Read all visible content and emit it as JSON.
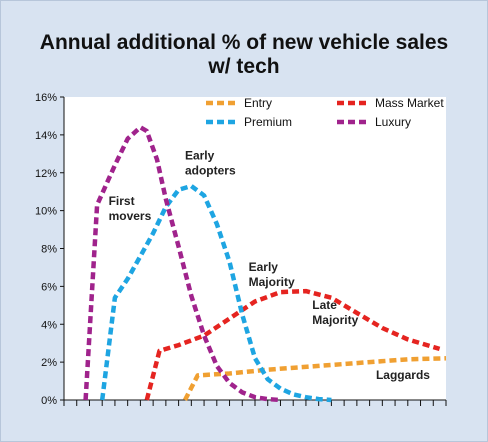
{
  "chart_data": {
    "type": "line",
    "title_line1": "Annual additional % of new vehicle sales",
    "title_line2": "w/ tech",
    "xlabel": "",
    "ylabel": "",
    "ylim": [
      0,
      16
    ],
    "y_ticks": [
      "0%",
      "2%",
      "4%",
      "6%",
      "8%",
      "10%",
      "12%",
      "14%",
      "16%"
    ],
    "x_range": [
      0,
      30
    ],
    "grid": false,
    "legend_position": "top-right",
    "series": [
      {
        "name": "Entry",
        "color": "#f0a032",
        "points": [
          [
            9.5,
            0
          ],
          [
            10.5,
            1.3
          ],
          [
            13,
            1.4
          ],
          [
            16,
            1.6
          ],
          [
            20,
            1.8
          ],
          [
            24,
            2.0
          ],
          [
            27,
            2.15
          ],
          [
            30,
            2.2
          ]
        ]
      },
      {
        "name": "Mass Market",
        "color": "#e52420",
        "points": [
          [
            6.5,
            0
          ],
          [
            7.5,
            2.6
          ],
          [
            9,
            2.9
          ],
          [
            11,
            3.4
          ],
          [
            13,
            4.3
          ],
          [
            15,
            5.2
          ],
          [
            17,
            5.7
          ],
          [
            19,
            5.75
          ],
          [
            21,
            5.4
          ],
          [
            23,
            4.6
          ],
          [
            25,
            3.8
          ],
          [
            27,
            3.2
          ],
          [
            29.5,
            2.7
          ]
        ]
      },
      {
        "name": "Premium",
        "color": "#1ea5e2",
        "points": [
          [
            3,
            0
          ],
          [
            4,
            5.4
          ],
          [
            5,
            6.4
          ],
          [
            6,
            7.6
          ],
          [
            7,
            8.8
          ],
          [
            8,
            10.2
          ],
          [
            9,
            11.1
          ],
          [
            10,
            11.3
          ],
          [
            11,
            10.8
          ],
          [
            12,
            9.3
          ],
          [
            13,
            7.3
          ],
          [
            14,
            4.5
          ],
          [
            15,
            2.2
          ],
          [
            16,
            1.1
          ],
          [
            17,
            0.6
          ],
          [
            18,
            0.3
          ],
          [
            19,
            0.15
          ],
          [
            20,
            0.05
          ],
          [
            21,
            0
          ]
        ]
      },
      {
        "name": "Luxury",
        "color": "#a0238c",
        "points": [
          [
            1.7,
            0
          ],
          [
            2.6,
            10.3
          ],
          [
            3.2,
            11.2
          ],
          [
            4,
            12.4
          ],
          [
            5,
            13.8
          ],
          [
            6,
            14.4
          ],
          [
            6.5,
            14.2
          ],
          [
            7.3,
            12.7
          ],
          [
            8,
            10.6
          ],
          [
            9,
            8.1
          ],
          [
            10,
            5.5
          ],
          [
            11,
            3.4
          ],
          [
            12,
            1.8
          ],
          [
            13,
            0.9
          ],
          [
            14,
            0.4
          ],
          [
            15,
            0.15
          ],
          [
            16,
            0.05
          ],
          [
            17,
            0
          ]
        ]
      }
    ],
    "annotations": [
      {
        "lines": [
          "First",
          "movers"
        ],
        "x": 3.5,
        "y": 10.3
      },
      {
        "lines": [
          "Early",
          "adopters"
        ],
        "x": 9.5,
        "y": 12.7
      },
      {
        "lines": [
          "Early",
          "Majority"
        ],
        "x": 14.5,
        "y": 6.8
      },
      {
        "lines": [
          "Late",
          "Majority"
        ],
        "x": 19.5,
        "y": 4.8
      },
      {
        "lines": [
          "Laggards"
        ],
        "x": 24.5,
        "y": 1.1
      }
    ],
    "legend_order": [
      "Entry",
      "Mass Market",
      "Premium",
      "Luxury"
    ]
  }
}
